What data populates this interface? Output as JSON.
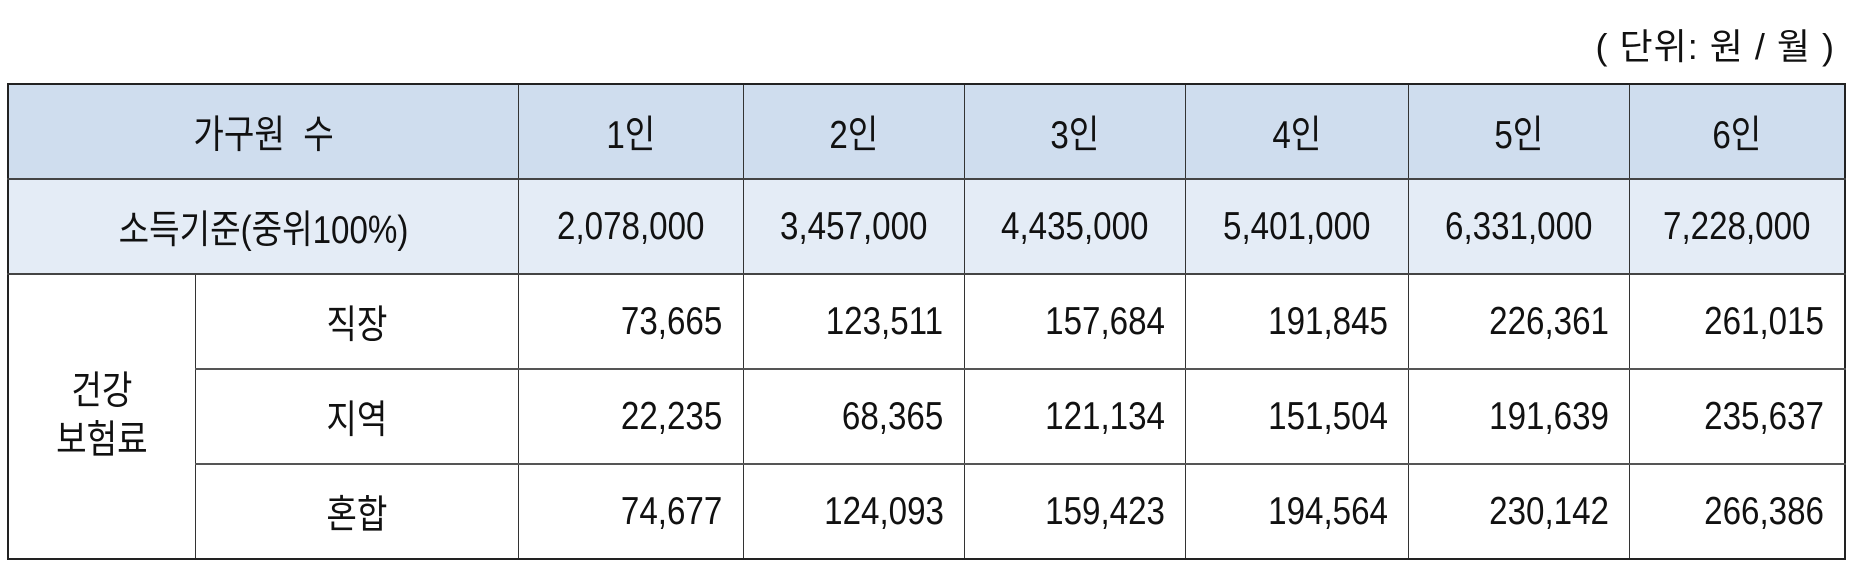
{
  "unit_label": "( 단위: 원 / 월 )",
  "header": {
    "label": "가구원  수",
    "columns": [
      "1인",
      "2인",
      "3인",
      "4인",
      "5인",
      "6인"
    ]
  },
  "income": {
    "label": "소득기준(중위100%)",
    "values": [
      "2,078,000",
      "3,457,000",
      "4,435,000",
      "5,401,000",
      "6,331,000",
      "7,228,000"
    ]
  },
  "insurance": {
    "group_label_line1": "건강",
    "group_label_line2": "보험료",
    "rows": [
      {
        "label": "직장",
        "values": [
          "73,665",
          "123,511",
          "157,684",
          "191,845",
          "226,361",
          "261,015"
        ]
      },
      {
        "label": "지역",
        "values": [
          "22,235",
          "68,365",
          "121,134",
          "151,504",
          "191,639",
          "235,637"
        ]
      },
      {
        "label": "혼합",
        "values": [
          "74,677",
          "124,093",
          "159,423",
          "194,564",
          "230,142",
          "266,386"
        ]
      }
    ]
  },
  "colors": {
    "header_bg": "#cfddee",
    "income_bg": "#e4ecf6"
  }
}
